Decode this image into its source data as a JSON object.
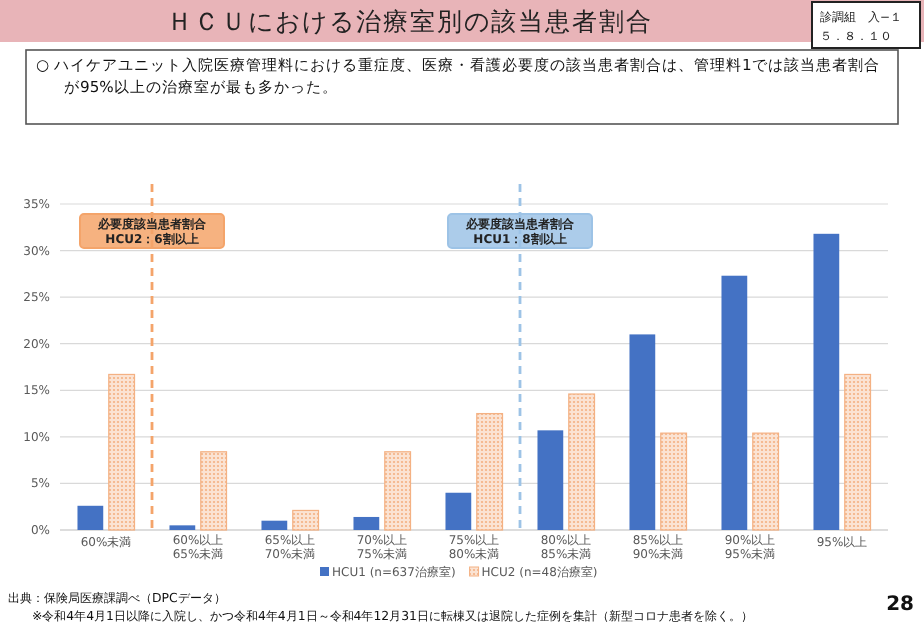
{
  "chart_data": {
    "type": "bar",
    "title": "ＨＣＵにおける治療室別の該当患者割合",
    "subtitle": "○ ハイケアユニット入院医療管理料における重症度、医療・看護必要度の該当患者割合は、管理料1では該当患者割合が95%以上の治療室が最も多かった。",
    "categories": [
      "60%未満",
      "60%以上65%未満",
      "65%以上70%未満",
      "70%以上75%未満",
      "75%以上80%未満",
      "80%以上85%未満",
      "85%以上90%未満",
      "90%以上95%未満",
      "95%以上"
    ],
    "series": [
      {
        "name": "HCU1 (n=637治療室)",
        "color": "#4472c4",
        "values": [
          2.6,
          0.5,
          1.0,
          1.4,
          4.0,
          10.7,
          21.0,
          27.3,
          31.8
        ]
      },
      {
        "name": "HCU2 (n=48治療室)",
        "color": "#f4b183",
        "values": [
          16.7,
          8.4,
          2.1,
          8.4,
          12.5,
          14.6,
          10.4,
          10.4,
          16.7
        ]
      }
    ],
    "ylim": [
      0,
      35
    ],
    "yticks": [
      {
        "value": 0,
        "label": "0%"
      },
      {
        "value": 5,
        "label": "5%"
      },
      {
        "value": 10,
        "label": "10%"
      },
      {
        "value": 15,
        "label": "15%"
      },
      {
        "value": 20,
        "label": "20%"
      },
      {
        "value": 25,
        "label": "25%"
      },
      {
        "value": 30,
        "label": "30%"
      },
      {
        "value": 35,
        "label": "35%"
      }
    ],
    "grid": "y",
    "legend": "bottom",
    "ref_lines": [
      {
        "axis": "x",
        "value": "60%以上65%未満",
        "label": "必要度該当患者割合\nHCU2：6割以上",
        "color": "#f4a46a",
        "line_style": "dashed"
      },
      {
        "axis": "x",
        "value": "80%以上85%未満",
        "label": "必要度該当患者割合\nHCU1：8割以上",
        "color": "#9dc3e6",
        "line_style": "dashed"
      }
    ],
    "annotations": [
      "診調組　入−１",
      "５．８．１０",
      "出典：保険局医療課調べ（DPCデータ）",
      "※令和4年4月1日以降に入院し、かつ令和4年4月1日～令和4年12月31日に転棟又は退院した症例を集計（新型コロナ患者を除く。）",
      "28"
    ]
  }
}
